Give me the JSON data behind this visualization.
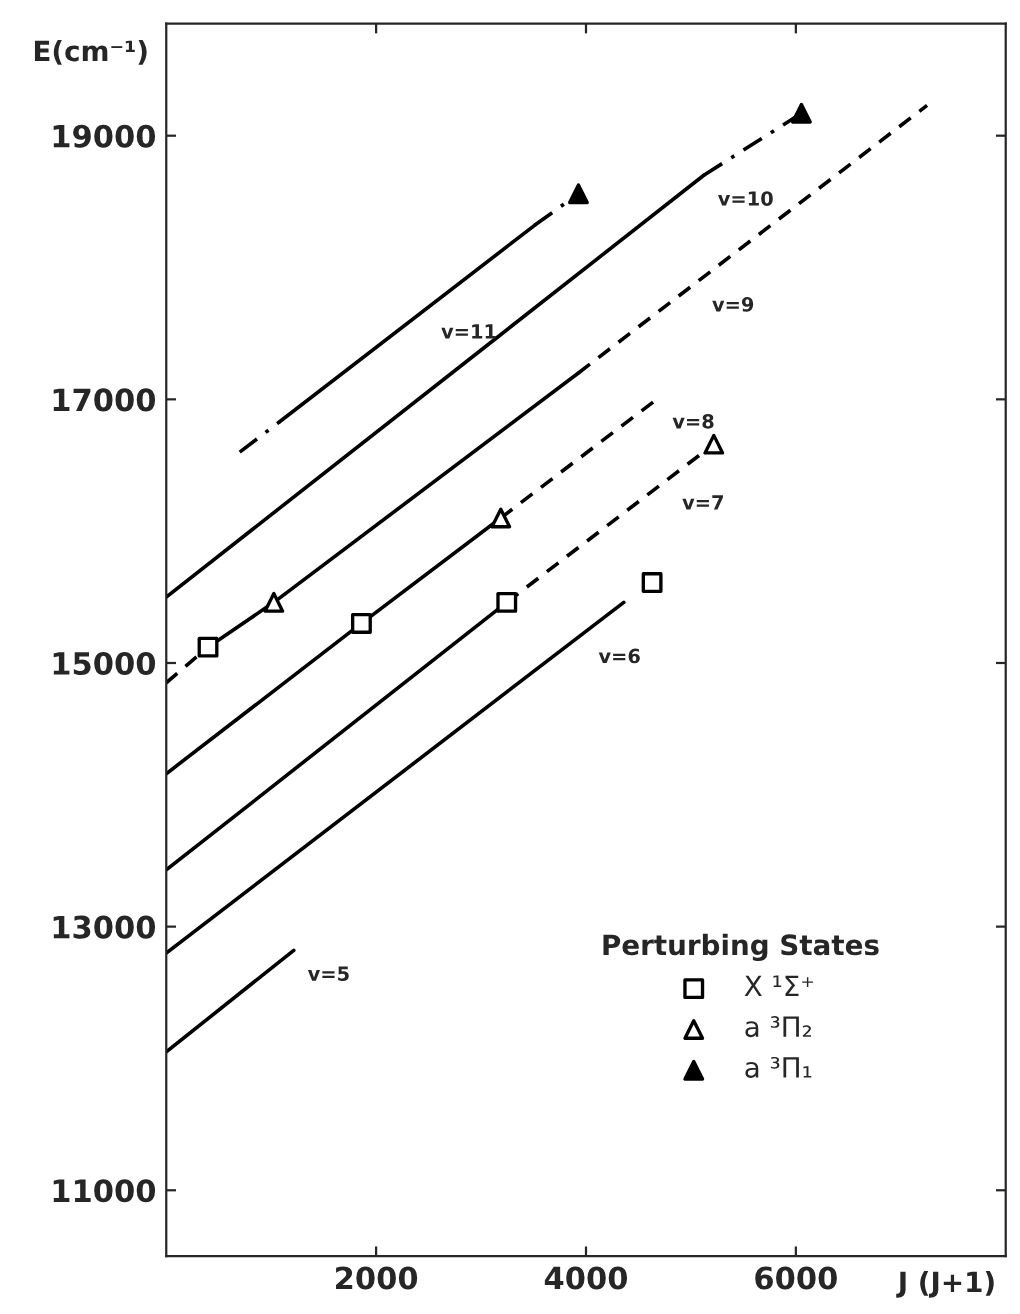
{
  "chart_data": {
    "type": "line",
    "xlabel": "J (J+1)",
    "ylabel": "E(cm⁻¹)",
    "legend_title": "Perturbing States",
    "xlim": [
      0,
      8000
    ],
    "ylim": [
      10500,
      19850
    ],
    "xticks": [
      2000,
      4000,
      6000
    ],
    "yticks": [
      11000,
      13000,
      15000,
      17000,
      19000
    ],
    "grid": false,
    "legend": "bottom right",
    "series": [
      {
        "color": "#000000",
        "line_style": "solid",
        "marker": "none",
        "x": [
          0,
          1215
        ],
        "values": [
          12050,
          12820
        ]
      },
      {
        "color": "#000000",
        "line_style": "solid",
        "marker": "none",
        "x": [
          0,
          4360
        ],
        "values": [
          12800,
          15460
        ]
      },
      {
        "color": "#000000",
        "line_style": "solid",
        "marker": "none",
        "x": [
          0,
          3245
        ],
        "values": [
          13430,
          15460
        ]
      },
      {
        "color": "#000000",
        "line_style": "dashed",
        "marker": "none",
        "x": [
          3245,
          5218
        ],
        "values": [
          15460,
          16660
        ]
      },
      {
        "color": "#000000",
        "line_style": "solid",
        "marker": "none",
        "x": [
          0,
          1860,
          3188
        ],
        "values": [
          14160,
          15300,
          16100
        ]
      },
      {
        "color": "#000000",
        "line_style": "dashed",
        "marker": "none",
        "x": [
          3188,
          4690
        ],
        "values": [
          16100,
          17010
        ]
      },
      {
        "color": "#000000",
        "line_style": "dashed",
        "marker": "none",
        "x": [
          0,
          398
        ],
        "values": [
          14850,
          15120
        ]
      },
      {
        "color": "#000000",
        "line_style": "solid",
        "marker": "none",
        "x": [
          398,
          1025,
          3928
        ],
        "values": [
          15120,
          15460,
          17200
        ]
      },
      {
        "color": "#000000",
        "line_style": "dashed",
        "marker": "none",
        "x": [
          3928,
          7250
        ],
        "values": [
          17200,
          19230
        ]
      },
      {
        "color": "#000000",
        "line_style": "solid",
        "marker": "none",
        "x": [
          0,
          5123
        ],
        "values": [
          15500,
          18700
        ]
      },
      {
        "color": "#000000",
        "line_style": "dashdot",
        "marker": "none",
        "x": [
          5123,
          6053
        ],
        "values": [
          18700,
          19170
        ]
      },
      {
        "color": "#000000",
        "line_style": "dashdot",
        "marker": "none",
        "x": [
          700,
          1080
        ],
        "values": [
          16600,
          16830
        ]
      },
      {
        "color": "#000000",
        "line_style": "solid",
        "marker": "none",
        "x": [
          1080,
          3510
        ],
        "values": [
          16830,
          18320
        ]
      },
      {
        "color": "#000000",
        "line_style": "dashdot",
        "marker": "none",
        "x": [
          3510,
          3928
        ],
        "values": [
          18320,
          18560
        ]
      },
      {
        "type": "scatter",
        "name": "X ¹Σ⁺",
        "color": "#000000",
        "marker": "square",
        "x": [
          398,
          1860,
          3245,
          4630
        ],
        "values": [
          15120,
          15300,
          15460,
          15610
        ]
      },
      {
        "type": "scatter",
        "name": "a ³Π₂",
        "color": "#000000",
        "marker": "triangle",
        "x": [
          1025,
          3188,
          5218
        ],
        "values": [
          15460,
          16100,
          16660
        ]
      },
      {
        "type": "scatter",
        "name": "a ³Π₁",
        "color": "#000000",
        "marker": "triangle",
        "x": [
          3928,
          6053
        ],
        "values": [
          18560,
          19170
        ]
      }
    ],
    "annotations": [
      {
        "text": "v=5",
        "x": 1215,
        "y": 12820
      },
      {
        "text": "v=6",
        "x": 3986,
        "y": 15230
      },
      {
        "text": "v=7",
        "x": 4783,
        "y": 16395
      },
      {
        "text": "v=8",
        "x": 4690,
        "y": 17010
      },
      {
        "text": "v=9",
        "x": 5068,
        "y": 17897
      },
      {
        "text": "v=10",
        "x": 5123,
        "y": 18700
      },
      {
        "text": "v=11",
        "x": 2486,
        "y": 17692
      }
    ]
  }
}
